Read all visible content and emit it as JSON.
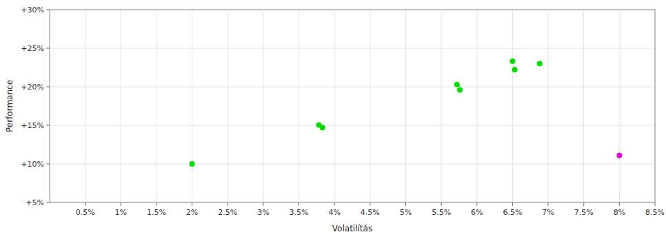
{
  "chart_data": {
    "type": "scatter",
    "xlabel": "Volatilítás",
    "ylabel": "Performance",
    "xlim": [
      0.0,
      8.5
    ],
    "ylim": [
      5,
      30
    ],
    "xticks": [
      {
        "value": 0.5,
        "label": "0.5%"
      },
      {
        "value": 1.0,
        "label": "1%"
      },
      {
        "value": 1.5,
        "label": "1.5%"
      },
      {
        "value": 2.0,
        "label": "2%"
      },
      {
        "value": 2.5,
        "label": "2.5%"
      },
      {
        "value": 3.0,
        "label": "3%"
      },
      {
        "value": 3.5,
        "label": "3.5%"
      },
      {
        "value": 4.0,
        "label": "4%"
      },
      {
        "value": 4.5,
        "label": "4.5%"
      },
      {
        "value": 5.0,
        "label": "5%"
      },
      {
        "value": 5.5,
        "label": "5.5%"
      },
      {
        "value": 6.0,
        "label": "6%"
      },
      {
        "value": 6.5,
        "label": "6.5%"
      },
      {
        "value": 7.0,
        "label": "7%"
      },
      {
        "value": 7.5,
        "label": "7.5%"
      },
      {
        "value": 8.0,
        "label": "8%"
      },
      {
        "value": 8.5,
        "label": "8.5%"
      }
    ],
    "yticks": [
      {
        "value": 5,
        "label": "+5%"
      },
      {
        "value": 10,
        "label": "+10%"
      },
      {
        "value": 15,
        "label": "+15%"
      },
      {
        "value": 20,
        "label": "+20%"
      },
      {
        "value": 25,
        "label": "+25%"
      },
      {
        "value": 30,
        "label": "+30%"
      }
    ],
    "grid": true,
    "series": [
      {
        "color": "#00dd00",
        "x": [
          2.0,
          3.78,
          3.83,
          5.72,
          5.76,
          6.5,
          6.53,
          6.88
        ],
        "values": [
          10.0,
          15.05,
          14.7,
          20.3,
          19.6,
          23.3,
          22.2,
          23.0
        ]
      },
      {
        "color": "#dd00dd",
        "x": [
          8.0
        ],
        "values": [
          11.1
        ]
      }
    ]
  }
}
